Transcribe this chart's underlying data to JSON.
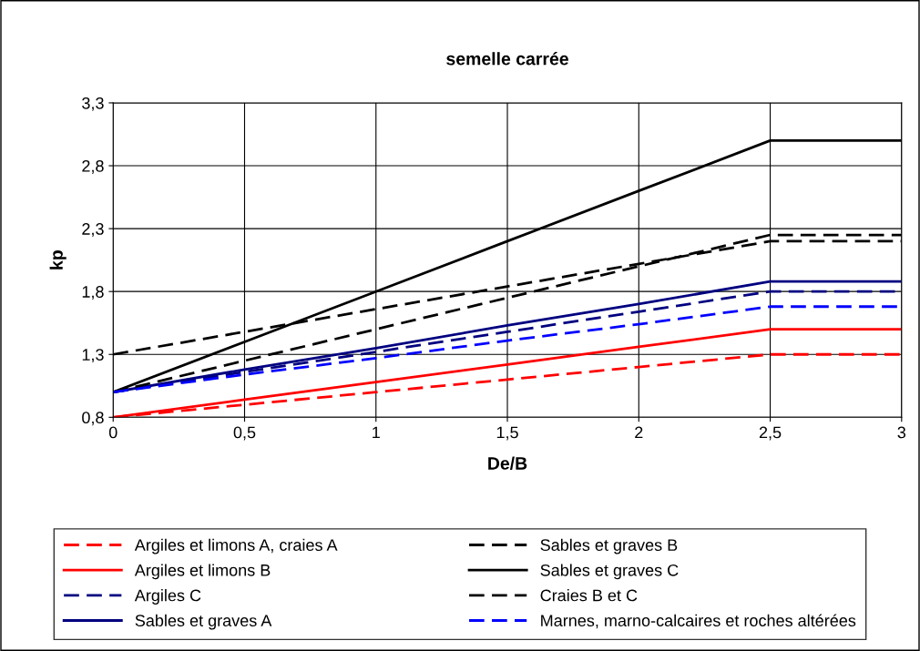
{
  "chart_data": {
    "type": "line",
    "title": "semelle carrée",
    "xlabel": "De/B",
    "ylabel": "kp",
    "x": [
      0,
      0.5,
      1,
      1.5,
      2,
      2.5,
      3
    ],
    "series": [
      {
        "name": "Argiles et limons A, craies A",
        "color": "#ff0000",
        "line_style": "dashed",
        "values": [
          0.8,
          0.9,
          1.0,
          1.1,
          1.2,
          1.3,
          1.3
        ]
      },
      {
        "name": "Argiles et limons B",
        "color": "#ff0000",
        "line_style": "solid",
        "values": [
          0.8,
          0.94,
          1.08,
          1.22,
          1.36,
          1.5,
          1.5
        ]
      },
      {
        "name": "Argiles C",
        "color": "#000080",
        "line_style": "dashed",
        "values": [
          1.0,
          1.16,
          1.32,
          1.48,
          1.64,
          1.8,
          1.8
        ]
      },
      {
        "name": "Sables et graves A",
        "color": "#000080",
        "line_style": "solid",
        "values": [
          1.0,
          1.18,
          1.35,
          1.53,
          1.7,
          1.88,
          1.88
        ]
      },
      {
        "name": "Sables et graves B",
        "color": "#000000",
        "line_style": "dashed",
        "values": [
          1.0,
          1.25,
          1.5,
          1.75,
          2.0,
          2.25,
          2.25
        ]
      },
      {
        "name": "Sables et graves C",
        "color": "#000000",
        "line_style": "solid",
        "values": [
          1.0,
          1.4,
          1.8,
          2.2,
          2.6,
          3.0,
          3.0
        ]
      },
      {
        "name": "Craies B et C",
        "color": "#000000",
        "line_style": "dashed",
        "values": [
          1.3,
          1.48,
          1.66,
          1.84,
          2.02,
          2.2,
          2.2
        ]
      },
      {
        "name": "Marnes, marno-calcaires et roches altérées",
        "color": "#0000ff",
        "line_style": "dashed",
        "values": [
          1.0,
          1.14,
          1.27,
          1.41,
          1.54,
          1.68,
          1.68
        ]
      }
    ],
    "xlim": [
      0,
      3
    ],
    "xticks": [
      0,
      {
        "value": 0.5,
        "label": "0,5"
      },
      1,
      {
        "value": 1.5,
        "label": "1,5"
      },
      2,
      {
        "value": 2.5,
        "label": "2,5"
      },
      3
    ],
    "ylim": [
      0.8,
      3.3
    ],
    "yticks": [
      {
        "value": 0.8,
        "label": "0,8"
      },
      {
        "value": 1.3,
        "label": "1,3"
      },
      {
        "value": 1.8,
        "label": "1,8"
      },
      {
        "value": 2.3,
        "label": "2,3"
      },
      {
        "value": 2.8,
        "label": "2,8"
      },
      {
        "value": 3.3,
        "label": "3,3"
      }
    ],
    "grid": true,
    "legend": "bottom",
    "marker": "none"
  }
}
